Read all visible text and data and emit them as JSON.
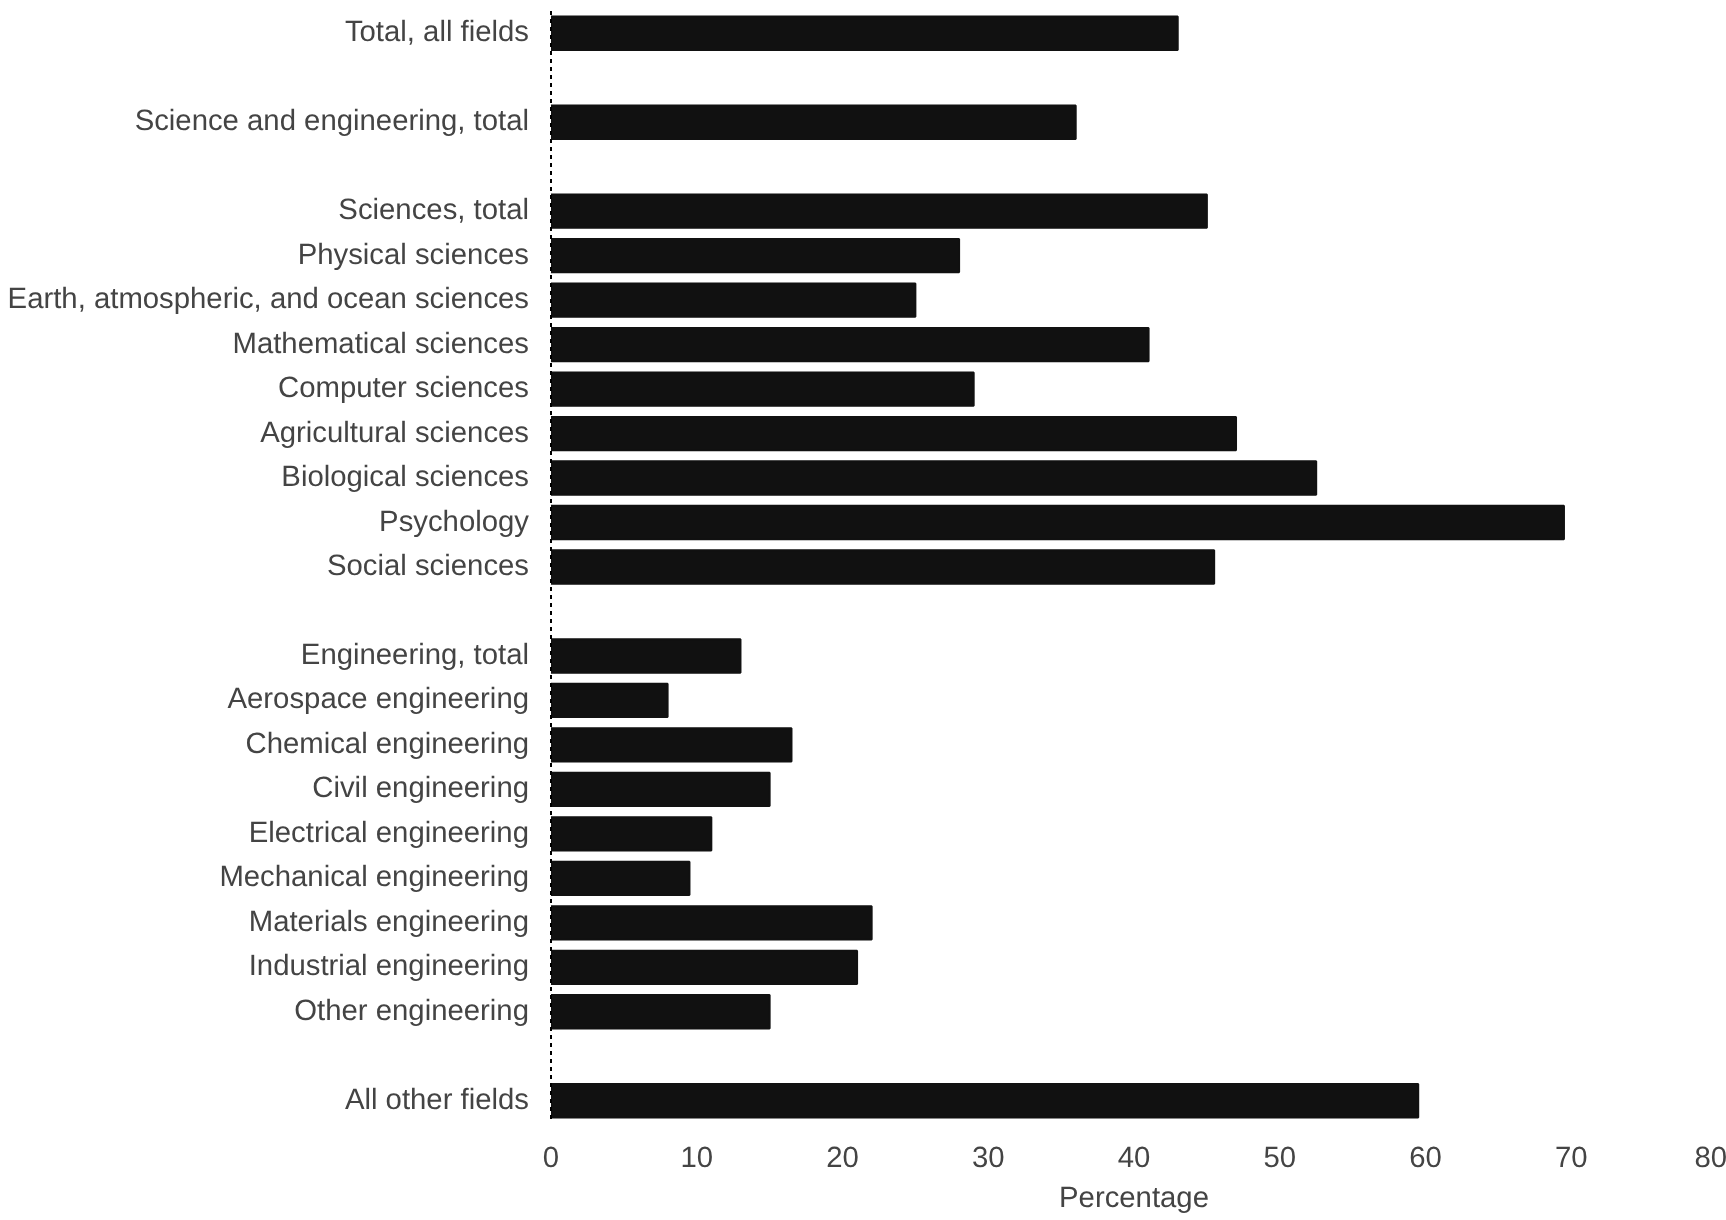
{
  "chart_data": {
    "type": "bar",
    "orientation": "horizontal",
    "xlabel": "Percentage",
    "categories": [
      "Total, all fields",
      null,
      "Science and engineering, total",
      null,
      "Sciences, total",
      "Physical sciences",
      "Earth, atmospheric, and ocean sciences",
      "Mathematical sciences",
      "Computer sciences",
      "Agricultural sciences",
      "Biological sciences",
      "Psychology",
      "Social sciences",
      null,
      "Engineering, total",
      "Aerospace engineering",
      "Chemical engineering",
      "Civil engineering",
      "Electrical engineering",
      "Mechanical engineering",
      "Materials engineering",
      "Industrial engineering",
      "Other engineering",
      null,
      "All other fields"
    ],
    "values": [
      43,
      null,
      36,
      null,
      45,
      28,
      25,
      41,
      29,
      47,
      52.5,
      69.5,
      45.5,
      null,
      13,
      8,
      16.5,
      15,
      11,
      9.5,
      22,
      21,
      15,
      null,
      59.5
    ],
    "color": "#111111",
    "xlim": [
      0,
      80
    ],
    "xticks": [
      0,
      10,
      20,
      30,
      40,
      50,
      60,
      70,
      80
    ],
    "grid": false
  }
}
